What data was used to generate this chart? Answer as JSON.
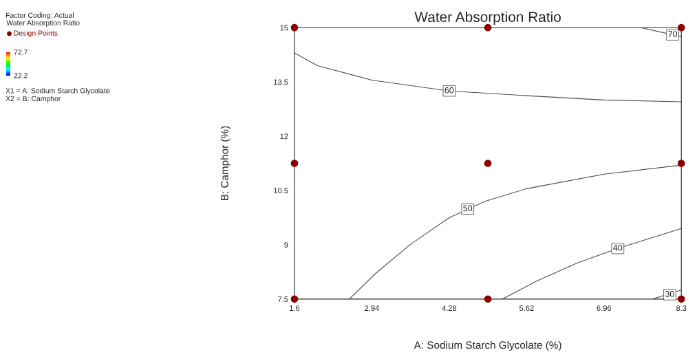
{
  "chart_data": {
    "type": "line",
    "title": "Water Absorption Ratio",
    "xlabel": "A: Sodium Starch Glycolate (%)",
    "ylabel": "B: Camphor (%)",
    "legend_title": "Water Absorption Ratio",
    "legend": "top left",
    "xlim": [
      1.6,
      8.3
    ],
    "ylim": [
      7.5,
      15
    ],
    "xticks": [
      1.6,
      2.94,
      4.28,
      5.62,
      6.96,
      8.3
    ],
    "yticks": [
      7.5,
      9,
      10.5,
      12,
      13.5,
      15
    ],
    "clim": [
      22.2,
      72.7
    ],
    "cticks": [
      22.2,
      72.7
    ],
    "grid": false,
    "series": [
      {
        "color": "#4d4d4d",
        "x": [
          1.6,
          2.0,
          2.94,
          4.28,
          5.62,
          6.96,
          8.3
        ],
        "values": [
          14.3,
          13.95,
          13.55,
          13.25,
          13.12,
          13.0,
          12.95
        ]
      },
      {
        "color": "#4d4d4d",
        "x": [
          7.6,
          8.3
        ],
        "values": [
          15,
          14.75
        ]
      },
      {
        "color": "#4d4d4d",
        "x": [
          2.55,
          3.0,
          3.6,
          4.28,
          4.9,
          5.62,
          6.96,
          8.3
        ],
        "values": [
          7.5,
          8.2,
          9.0,
          9.75,
          10.2,
          10.55,
          10.95,
          11.2
        ]
      },
      {
        "color": "#4d4d4d",
        "x": [
          5.2,
          5.8,
          6.5,
          7.2,
          8.3
        ],
        "values": [
          7.5,
          8.0,
          8.5,
          8.9,
          9.45
        ]
      },
      {
        "color": "#4d4d4d",
        "x": [
          7.8,
          8.3
        ],
        "values": [
          7.5,
          7.75
        ]
      },
      {
        "type": "scatter",
        "name": "Design Points",
        "color": "#8b0000",
        "marker": "circle",
        "x": [
          1.6,
          4.95,
          8.3,
          1.6,
          4.95,
          8.3,
          1.6,
          4.95,
          8.3
        ],
        "values": [
          15,
          15,
          15,
          11.25,
          11.25,
          11.25,
          7.5,
          7.5,
          7.5
        ]
      }
    ],
    "annotations": [
      "Factor Coding: Actual",
      "X1 = A: Sodium Starch Glycolate",
      "X2 = B: Camphor",
      {
        "text": "70",
        "x": 8.15,
        "y": 14.8
      },
      {
        "text": "60",
        "x": 4.28,
        "y": 13.25
      },
      {
        "text": "50",
        "x": 4.6,
        "y": 9.99
      },
      {
        "text": "40",
        "x": 7.2,
        "y": 8.9
      },
      {
        "text": "30",
        "x": 8.1,
        "y": 7.62
      }
    ]
  }
}
